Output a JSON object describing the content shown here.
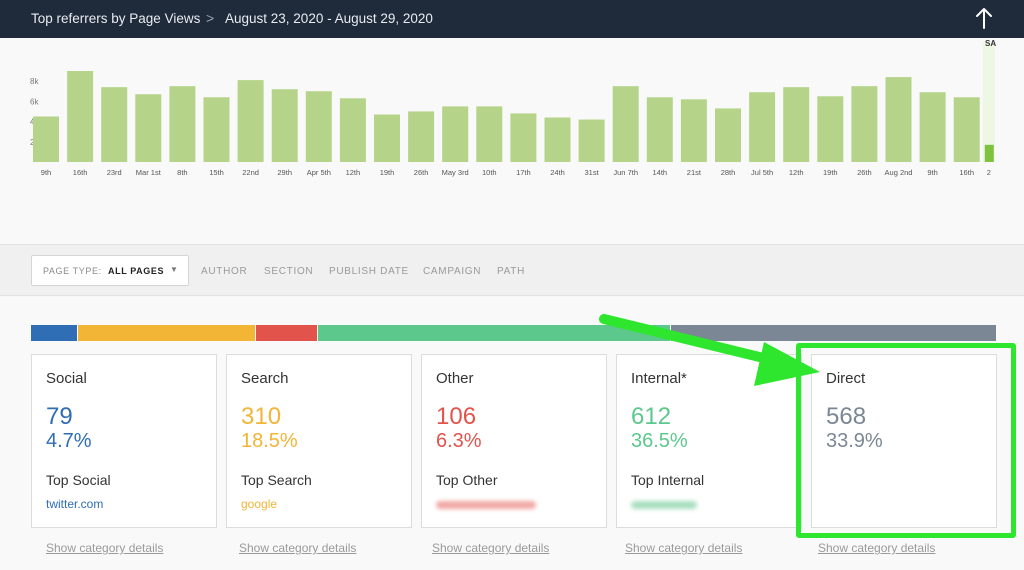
{
  "header": {
    "title": "Top referrers by Page Views",
    "separator": ">",
    "date_range": "August 23, 2020 - August 29, 2020",
    "scroll_top_icon": "arrow-up-icon"
  },
  "chart_data": {
    "type": "bar",
    "y_tick_labels": [
      "8k",
      "6k",
      "4k",
      "2k"
    ],
    "ylim": [
      0,
      10000
    ],
    "categories": [
      "9th",
      "16th",
      "23rd",
      "Mar 1st",
      "8th",
      "15th",
      "22nd",
      "29th",
      "Apr 5th",
      "12th",
      "19th",
      "26th",
      "May 3rd",
      "10th",
      "17th",
      "24th",
      "31st",
      "Jun 7th",
      "14th",
      "21st",
      "28th",
      "Jul 5th",
      "12th",
      "19th",
      "26th",
      "Aug 2nd",
      "9th",
      "16th",
      "2"
    ],
    "values": [
      4500,
      9000,
      7400,
      6700,
      7500,
      6400,
      8100,
      7200,
      7000,
      6300,
      4700,
      5000,
      5500,
      5500,
      4800,
      4400,
      4200,
      7500,
      6400,
      6200,
      5300,
      6900,
      7400,
      6500,
      7500,
      8400,
      6900,
      6400,
      1700
    ],
    "bar_color": "#b5d48a",
    "highlight_color": "#7ec23d",
    "cut_off_label": "SA"
  },
  "filters": {
    "page_type_label": "PAGE TYPE:",
    "page_type_value": "ALL PAGES",
    "tabs": [
      "AUTHOR",
      "SECTION",
      "PUBLISH DATE",
      "CAMPAIGN",
      "PATH"
    ]
  },
  "distribution": [
    {
      "name": "Social",
      "pct": 4.7,
      "color": "#2f6db5"
    },
    {
      "name": "Search",
      "pct": 18.5,
      "color": "#f2b535"
    },
    {
      "name": "Other",
      "pct": 6.3,
      "color": "#e2534b"
    },
    {
      "name": "Internal",
      "pct": 36.5,
      "color": "#5cc88c"
    },
    {
      "name": "Direct",
      "pct": 33.9,
      "color": "#7b8794"
    }
  ],
  "cards": [
    {
      "name": "Social",
      "count": "79",
      "percent": "4.7%",
      "top_label": "Top Social",
      "top_value": "twitter.com",
      "color": "#2f6db5",
      "details": "Show category details"
    },
    {
      "name": "Search",
      "count": "310",
      "percent": "18.5%",
      "top_label": "Top Search",
      "top_value": "google",
      "color": "#f2b535",
      "details": "Show category details"
    },
    {
      "name": "Other",
      "count": "106",
      "percent": "6.3%",
      "top_label": "Top Other",
      "color": "#e2534b",
      "details": "Show category details"
    },
    {
      "name": "Internal*",
      "count": "612",
      "percent": "36.5%",
      "top_label": "Top Internal",
      "color": "#5cc88c",
      "details": "Show category details"
    },
    {
      "name": "Direct",
      "count": "568",
      "percent": "33.9%",
      "color": "#7b8794",
      "details": "Show category details"
    }
  ],
  "annotation_color": "#2ee62e"
}
